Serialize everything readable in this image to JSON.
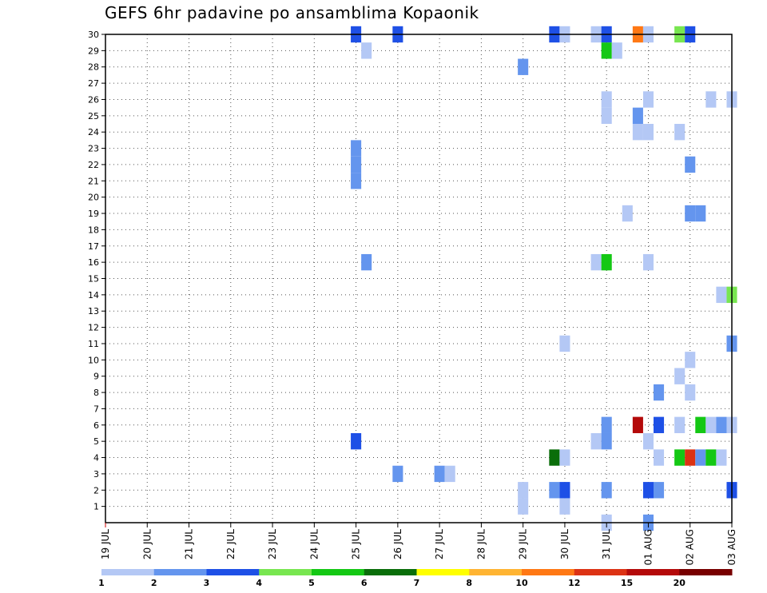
{
  "chart_data": {
    "type": "heatmap",
    "title": "GEFS 6hr padavine po ansamblima Kopaonik",
    "x_tick_labels": [
      "19 JUL",
      "20 JUL",
      "21 JUL",
      "22 JUL",
      "23 JUL",
      "24 JUL",
      "25 JUL",
      "26 JUL",
      "27 JUL",
      "28 JUL",
      "29 JUL",
      "30 JUL",
      "31 JUL",
      "01 AUG",
      "02 AUG",
      "03 AUG"
    ],
    "y_tick_labels": [
      "1",
      "2",
      "3",
      "4",
      "5",
      "6",
      "7",
      "8",
      "9",
      "10",
      "11",
      "12",
      "13",
      "14",
      "15",
      "16",
      "17",
      "18",
      "19",
      "20",
      "21",
      "22",
      "23",
      "24",
      "25",
      "26",
      "27",
      "28",
      "29",
      "30"
    ],
    "xlim_steps": [
      0,
      60
    ],
    "ylim": [
      0,
      30
    ],
    "grid": true,
    "legend": {
      "placement": "bottom",
      "thresholds": [
        "1",
        "2",
        "3",
        "4",
        "5",
        "6",
        "7",
        "8",
        "10",
        "12",
        "15",
        "20"
      ],
      "colors": [
        "#b4c8f5",
        "#6495ee",
        "#1e50e6",
        "#78e650",
        "#14c814",
        "#0a6e0a",
        "#ffff00",
        "#ffb432",
        "#ff7814",
        "#dc3214",
        "#b40a0a",
        "#780000"
      ]
    },
    "cells": [
      {
        "member": 30,
        "step": 24,
        "color_index": 2
      },
      {
        "member": 30,
        "step": 28,
        "color_index": 2
      },
      {
        "member": 30,
        "step": 43,
        "color_index": 2
      },
      {
        "member": 30,
        "step": 44,
        "color_index": 0
      },
      {
        "member": 30,
        "step": 47,
        "color_index": 0
      },
      {
        "member": 30,
        "step": 48,
        "color_index": 2
      },
      {
        "member": 30,
        "step": 51,
        "color_index": 8
      },
      {
        "member": 30,
        "step": 52,
        "color_index": 0
      },
      {
        "member": 30,
        "step": 55,
        "color_index": 3
      },
      {
        "member": 30,
        "step": 56,
        "color_index": 2
      },
      {
        "member": 29,
        "step": 25,
        "color_index": 0
      },
      {
        "member": 29,
        "step": 48,
        "color_index": 4
      },
      {
        "member": 29,
        "step": 49,
        "color_index": 0
      },
      {
        "member": 28,
        "step": 40,
        "color_index": 1
      },
      {
        "member": 26,
        "step": 48,
        "color_index": 0
      },
      {
        "member": 26,
        "step": 52,
        "color_index": 0
      },
      {
        "member": 26,
        "step": 58,
        "color_index": 0
      },
      {
        "member": 26,
        "step": 60,
        "color_index": 0
      },
      {
        "member": 25,
        "step": 48,
        "color_index": 0
      },
      {
        "member": 25,
        "step": 51,
        "color_index": 1
      },
      {
        "member": 24,
        "step": 51,
        "color_index": 0
      },
      {
        "member": 24,
        "step": 52,
        "color_index": 0
      },
      {
        "member": 24,
        "step": 55,
        "color_index": 0
      },
      {
        "member": 23,
        "step": 24,
        "color_index": 1
      },
      {
        "member": 22,
        "step": 24,
        "color_index": 1
      },
      {
        "member": 22,
        "step": 56,
        "color_index": 1
      },
      {
        "member": 21,
        "step": 24,
        "color_index": 1
      },
      {
        "member": 19,
        "step": 50,
        "color_index": 0
      },
      {
        "member": 19,
        "step": 56,
        "color_index": 1
      },
      {
        "member": 19,
        "step": 57,
        "color_index": 1
      },
      {
        "member": 16,
        "step": 25,
        "color_index": 1
      },
      {
        "member": 16,
        "step": 47,
        "color_index": 0
      },
      {
        "member": 16,
        "step": 48,
        "color_index": 4
      },
      {
        "member": 16,
        "step": 52,
        "color_index": 0
      },
      {
        "member": 14,
        "step": 59,
        "color_index": 0
      },
      {
        "member": 14,
        "step": 60,
        "color_index": 3
      },
      {
        "member": 11,
        "step": 44,
        "color_index": 0
      },
      {
        "member": 11,
        "step": 60,
        "color_index": 1
      },
      {
        "member": 10,
        "step": 56,
        "color_index": 0
      },
      {
        "member": 9,
        "step": 55,
        "color_index": 0
      },
      {
        "member": 8,
        "step": 53,
        "color_index": 1
      },
      {
        "member": 8,
        "step": 56,
        "color_index": 0
      },
      {
        "member": 6,
        "step": 48,
        "color_index": 1
      },
      {
        "member": 6,
        "step": 51,
        "color_index": 10
      },
      {
        "member": 6,
        "step": 53,
        "color_index": 2
      },
      {
        "member": 6,
        "step": 55,
        "color_index": 0
      },
      {
        "member": 6,
        "step": 57,
        "color_index": 4
      },
      {
        "member": 6,
        "step": 58,
        "color_index": 0
      },
      {
        "member": 6,
        "step": 59,
        "color_index": 1
      },
      {
        "member": 6,
        "step": 60,
        "color_index": 0
      },
      {
        "member": 5,
        "step": 24,
        "color_index": 2
      },
      {
        "member": 5,
        "step": 47,
        "color_index": 0
      },
      {
        "member": 5,
        "step": 48,
        "color_index": 1
      },
      {
        "member": 5,
        "step": 52,
        "color_index": 0
      },
      {
        "member": 4,
        "step": 43,
        "color_index": 5
      },
      {
        "member": 4,
        "step": 44,
        "color_index": 0
      },
      {
        "member": 4,
        "step": 53,
        "color_index": 0
      },
      {
        "member": 4,
        "step": 55,
        "color_index": 4
      },
      {
        "member": 4,
        "step": 56,
        "color_index": 9
      },
      {
        "member": 4,
        "step": 57,
        "color_index": 1
      },
      {
        "member": 4,
        "step": 58,
        "color_index": 4
      },
      {
        "member": 4,
        "step": 59,
        "color_index": 0
      },
      {
        "member": 3,
        "step": 28,
        "color_index": 1
      },
      {
        "member": 3,
        "step": 32,
        "color_index": 1
      },
      {
        "member": 3,
        "step": 33,
        "color_index": 0
      },
      {
        "member": 2,
        "step": 40,
        "color_index": 0
      },
      {
        "member": 2,
        "step": 43,
        "color_index": 1
      },
      {
        "member": 2,
        "step": 44,
        "color_index": 2
      },
      {
        "member": 2,
        "step": 48,
        "color_index": 1
      },
      {
        "member": 2,
        "step": 52,
        "color_index": 2
      },
      {
        "member": 2,
        "step": 53,
        "color_index": 1
      },
      {
        "member": 2,
        "step": 60,
        "color_index": 2
      },
      {
        "member": 1,
        "step": 40,
        "color_index": 0
      },
      {
        "member": 1,
        "step": 44,
        "color_index": 0
      },
      {
        "member": 0,
        "step": 48,
        "color_index": 0
      },
      {
        "member": 0,
        "step": 52,
        "color_index": 1
      }
    ]
  }
}
